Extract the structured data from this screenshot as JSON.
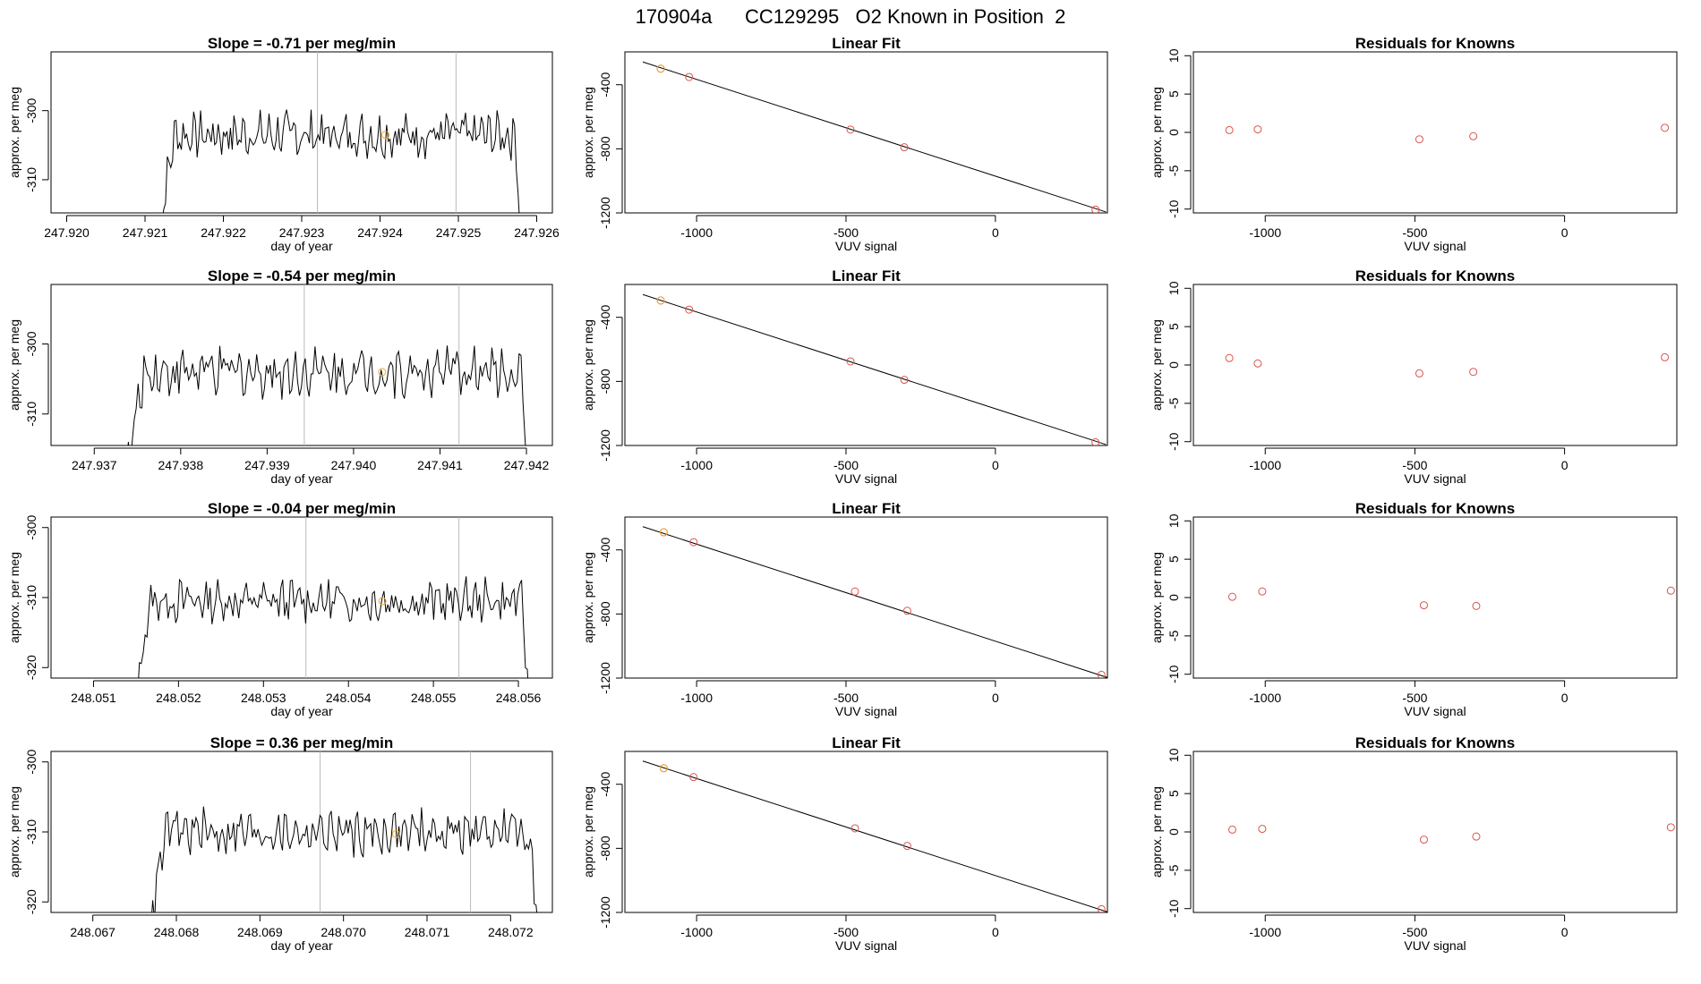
{
  "figure_title": "170904a      CC129295   O2 Known in Position  2",
  "colors": {
    "trace": "#000000",
    "points": "#d9534f",
    "highlight": "#f0a830",
    "guide": "#bbbbbb"
  },
  "chart_data": [
    {
      "type": "line",
      "title": "Slope =  -0.71  per meg/min",
      "xlabel": "day of year",
      "ylabel": "approx. per meg",
      "xlim": [
        247.9198,
        247.9262
      ],
      "ylim": [
        -314.8,
        -291.5
      ],
      "xticks": [
        247.92,
        247.921,
        247.922,
        247.923,
        247.924,
        247.925,
        247.926
      ],
      "xtick_labels": [
        "247.920",
        "247.921",
        "247.922",
        "247.923",
        "247.924",
        "247.925",
        "247.926"
      ],
      "yticks": [
        -300,
        -310
      ],
      "ytick_labels": [
        "-300",
        "-310"
      ],
      "x_start": 247.92115,
      "x_end": 247.92583,
      "base": -303.5,
      "amp": 2.6,
      "vlines": [
        247.9232,
        247.92497
      ],
      "highlight_point": {
        "x": 247.92407,
        "y": -303.5
      }
    },
    {
      "type": "scatter",
      "title": "Linear Fit",
      "xlabel": "VUV signal",
      "ylabel": "approx. per meg",
      "xlim": [
        -1240,
        375
      ],
      "ylim": [
        -1200,
        -195
      ],
      "xticks": [
        -1000,
        -500,
        0
      ],
      "xtick_labels": [
        "-1000",
        "-500",
        "0"
      ],
      "yticks": [
        -400,
        -800,
        -1200
      ],
      "ytick_labels": [
        "-400",
        "-800",
        "-1200"
      ],
      "points": [
        [
          -1120,
          -300
        ],
        [
          -1025,
          -352
        ],
        [
          -485,
          -680
        ],
        [
          -305,
          -790
        ],
        [
          335,
          -1180
        ]
      ],
      "fit_line": [
        [
          -1180,
          -258
        ],
        [
          370,
          -1194
        ]
      ],
      "highlight_index": 0
    },
    {
      "type": "scatter",
      "title": "Residuals for Knowns",
      "xlabel": "VUV signal",
      "ylabel": "approx. per meg",
      "xlim": [
        -1240,
        375
      ],
      "ylim": [
        -10.5,
        10.5
      ],
      "xticks": [
        -1000,
        -500,
        0
      ],
      "xtick_labels": [
        "-1000",
        "-500",
        "0"
      ],
      "yticks": [
        10,
        5,
        0,
        -5,
        -10
      ],
      "ytick_labels": [
        "10",
        "5",
        "0",
        "-5",
        "-10"
      ],
      "points": [
        [
          -1120,
          0.3
        ],
        [
          -1025,
          0.4
        ],
        [
          -485,
          -0.9
        ],
        [
          -305,
          -0.5
        ],
        [
          335,
          0.6
        ]
      ]
    },
    {
      "type": "line",
      "title": "Slope =  -0.54  per meg/min",
      "xlabel": "day of year",
      "ylabel": "approx. per meg",
      "xlim": [
        247.9365,
        247.9423
      ],
      "ylim": [
        -314.5,
        -291.5
      ],
      "xticks": [
        247.937,
        247.938,
        247.939,
        247.94,
        247.941,
        247.942
      ],
      "xtick_labels": [
        "247.937",
        "247.938",
        "247.939",
        "247.940",
        "247.941",
        "247.942"
      ],
      "yticks": [
        -300,
        -310
      ],
      "ytick_labels": [
        "-300",
        "-310"
      ],
      "x_start": 247.93735,
      "x_end": 247.94205,
      "base": -304.0,
      "amp": 2.7,
      "vlines": [
        247.93943,
        247.94122
      ],
      "highlight_point": {
        "x": 247.94033,
        "y": -304.0
      }
    },
    {
      "type": "scatter",
      "title": "Linear Fit",
      "xlabel": "VUV signal",
      "ylabel": "approx. per meg",
      "xlim": [
        -1240,
        375
      ],
      "ylim": [
        -1200,
        -195
      ],
      "xticks": [
        -1000,
        -500,
        0
      ],
      "xtick_labels": [
        "-1000",
        "-500",
        "0"
      ],
      "yticks": [
        -400,
        -800,
        -1200
      ],
      "ytick_labels": [
        "-400",
        "-800",
        "-1200"
      ],
      "points": [
        [
          -1120,
          -295
        ],
        [
          -1025,
          -352
        ],
        [
          -485,
          -675
        ],
        [
          -305,
          -790
        ],
        [
          335,
          -1180
        ]
      ],
      "fit_line": [
        [
          -1180,
          -258
        ],
        [
          370,
          -1194
        ]
      ],
      "highlight_index": 0
    },
    {
      "type": "scatter",
      "title": "Residuals for Knowns",
      "xlabel": "VUV signal",
      "ylabel": "approx. per meg",
      "xlim": [
        -1240,
        375
      ],
      "ylim": [
        -10.5,
        10.5
      ],
      "xticks": [
        -1000,
        -500,
        0
      ],
      "xtick_labels": [
        "-1000",
        "-500",
        "0"
      ],
      "yticks": [
        10,
        5,
        0,
        -5,
        -10
      ],
      "ytick_labels": [
        "10",
        "5",
        "0",
        "-5",
        "-10"
      ],
      "points": [
        [
          -1120,
          0.9
        ],
        [
          -1025,
          0.2
        ],
        [
          -485,
          -1.1
        ],
        [
          -305,
          -0.9
        ],
        [
          335,
          1.0
        ]
      ]
    },
    {
      "type": "line",
      "title": "Slope =  -0.04  per meg/min",
      "xlabel": "day of year",
      "ylabel": "approx. per meg",
      "xlim": [
        248.0505,
        248.0564
      ],
      "ylim": [
        -321.5,
        -298.5
      ],
      "xticks": [
        248.051,
        248.052,
        248.053,
        248.054,
        248.055,
        248.056
      ],
      "xtick_labels": [
        "248.051",
        "248.052",
        "248.053",
        "248.054",
        "248.055",
        "248.056"
      ],
      "yticks": [
        -300,
        -310,
        -320
      ],
      "ytick_labels": [
        "-300",
        "-310",
        "-320"
      ],
      "x_start": 248.05145,
      "x_end": 248.05615,
      "base": -310.5,
      "amp": 2.4,
      "vlines": [
        248.0535,
        248.0553
      ],
      "highlight_point": {
        "x": 248.0544,
        "y": -310.5
      }
    },
    {
      "type": "scatter",
      "title": "Linear Fit",
      "xlabel": "VUV signal",
      "ylabel": "approx. per meg",
      "xlim": [
        -1240,
        375
      ],
      "ylim": [
        -1200,
        -195
      ],
      "xticks": [
        -1000,
        -500,
        0
      ],
      "xtick_labels": [
        "-1000",
        "-500",
        "0"
      ],
      "yticks": [
        -400,
        -800,
        -1200
      ],
      "ytick_labels": [
        "-400",
        "-800",
        "-1200"
      ],
      "points": [
        [
          -1110,
          -290
        ],
        [
          -1010,
          -352
        ],
        [
          -470,
          -660
        ],
        [
          -295,
          -780
        ],
        [
          355,
          -1180
        ]
      ],
      "fit_line": [
        [
          -1180,
          -255
        ],
        [
          380,
          -1200
        ]
      ],
      "highlight_index": 0
    },
    {
      "type": "scatter",
      "title": "Residuals for Knowns",
      "xlabel": "VUV signal",
      "ylabel": "approx. per meg",
      "xlim": [
        -1240,
        375
      ],
      "ylim": [
        -10.5,
        10.5
      ],
      "xticks": [
        -1000,
        -500,
        0
      ],
      "xtick_labels": [
        "-1000",
        "-500",
        "0"
      ],
      "yticks": [
        10,
        5,
        0,
        -5,
        -10
      ],
      "ytick_labels": [
        "10",
        "5",
        "0",
        "-5",
        "-10"
      ],
      "points": [
        [
          -1110,
          0.1
        ],
        [
          -1010,
          0.8
        ],
        [
          -470,
          -1.0
        ],
        [
          -295,
          -1.1
        ],
        [
          355,
          0.9
        ]
      ]
    },
    {
      "type": "line",
      "title": "Slope =  0.36  per meg/min",
      "xlabel": "day of year",
      "ylabel": "approx. per meg",
      "xlim": [
        248.0665,
        248.0725
      ],
      "ylim": [
        -321.5,
        -298.5
      ],
      "xticks": [
        248.067,
        248.068,
        248.069,
        248.07,
        248.071,
        248.072
      ],
      "xtick_labels": [
        "248.067",
        "248.068",
        "248.069",
        "248.070",
        "248.071",
        "248.072"
      ],
      "yticks": [
        -300,
        -310,
        -320
      ],
      "ytick_labels": [
        "-300",
        "-310",
        "-320"
      ],
      "x_start": 248.06765,
      "x_end": 248.07235,
      "base": -310.0,
      "amp": 2.5,
      "vlines": [
        248.06972,
        248.07152
      ],
      "highlight_point": {
        "x": 248.07063,
        "y": -310.3
      }
    },
    {
      "type": "scatter",
      "title": "Linear Fit",
      "xlabel": "VUV signal",
      "ylabel": "approx. per meg",
      "xlim": [
        -1240,
        375
      ],
      "ylim": [
        -1200,
        -195
      ],
      "xticks": [
        -1000,
        -500,
        0
      ],
      "xtick_labels": [
        "-1000",
        "-500",
        "0"
      ],
      "yticks": [
        -400,
        -800,
        -1200
      ],
      "ytick_labels": [
        "-400",
        "-800",
        "-1200"
      ],
      "points": [
        [
          -1110,
          -300
        ],
        [
          -1010,
          -355
        ],
        [
          -470,
          -675
        ],
        [
          -295,
          -785
        ],
        [
          355,
          -1180
        ]
      ],
      "fit_line": [
        [
          -1180,
          -255
        ],
        [
          380,
          -1200
        ]
      ],
      "highlight_index": 0
    },
    {
      "type": "scatter",
      "title": "Residuals for Knowns",
      "xlabel": "VUV signal",
      "ylabel": "approx. per meg",
      "xlim": [
        -1240,
        375
      ],
      "ylim": [
        -10.5,
        10.5
      ],
      "xticks": [
        -1000,
        -500,
        0
      ],
      "xtick_labels": [
        "-1000",
        "-500",
        "0"
      ],
      "yticks": [
        10,
        5,
        0,
        -5,
        -10
      ],
      "ytick_labels": [
        "10",
        "5",
        "0",
        "-5",
        "-10"
      ],
      "points": [
        [
          -1110,
          0.3
        ],
        [
          -1010,
          0.4
        ],
        [
          -470,
          -1.0
        ],
        [
          -295,
          -0.6
        ],
        [
          355,
          0.6
        ]
      ]
    }
  ]
}
